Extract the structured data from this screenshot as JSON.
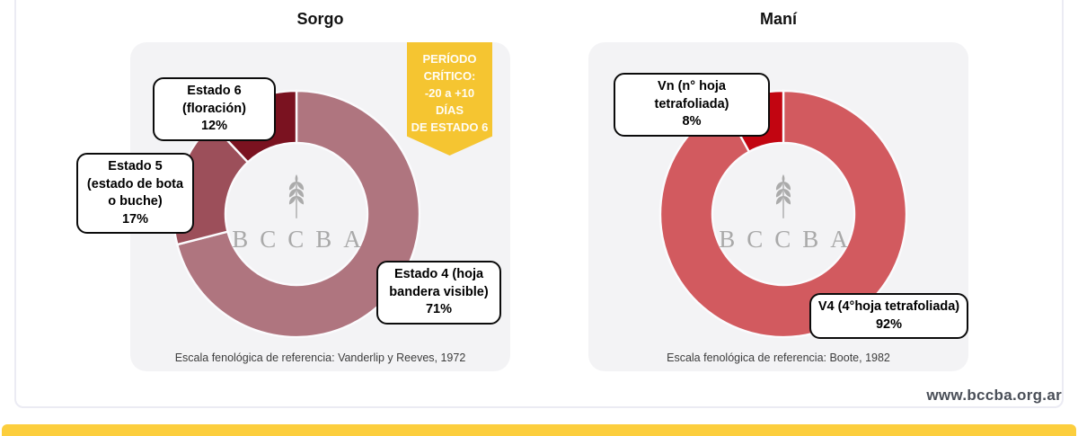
{
  "page": {
    "website": "www.bccba.org.ar",
    "watermark": "BCCBA"
  },
  "colors": {
    "panel_bg": "#F3F3F5",
    "card_border": "#EBEBF3",
    "stripe_yellow": "#FCCE3D",
    "ribbon_yellow": "#F5C531",
    "watermark_gray": "#A9A9A9"
  },
  "ribbon": {
    "lines": [
      "PERÍODO",
      "CRÍTICO:",
      "-20 a +10",
      "DÍAS",
      "DE ESTADO 6"
    ]
  },
  "chart_data": [
    {
      "type": "pie",
      "donut": true,
      "title": "Sorgo",
      "start_angle_deg": 0,
      "direction": "clockwise",
      "segments": [
        {
          "label": "Estado 4 (hoja bandera visible)",
          "value": 71,
          "pct": "71%",
          "color": "#AF757F"
        },
        {
          "label": "Estado 5 (estado de bota o buche)",
          "value": 17,
          "pct": "17%",
          "color": "#9C4F5A"
        },
        {
          "label": "Estado 6 (floración)",
          "value": 12,
          "pct": "12%",
          "color": "#7A1220"
        }
      ],
      "footnote": "Escala fenológica de referencia: Vanderlip y Reeves, 1972"
    },
    {
      "type": "pie",
      "donut": true,
      "title": "Maní",
      "start_angle_deg": 0,
      "direction": "clockwise",
      "segments": [
        {
          "label": "V4 (4°hoja tetrafoliada)",
          "value": 92,
          "pct": "92%",
          "color": "#D25A5F"
        },
        {
          "label": "Vn (n° hoja tetrafoliada)",
          "value": 8,
          "pct": "8%",
          "color": "#C20511"
        }
      ],
      "footnote": "Escala fenológica de referencia: Boote, 1982"
    }
  ]
}
